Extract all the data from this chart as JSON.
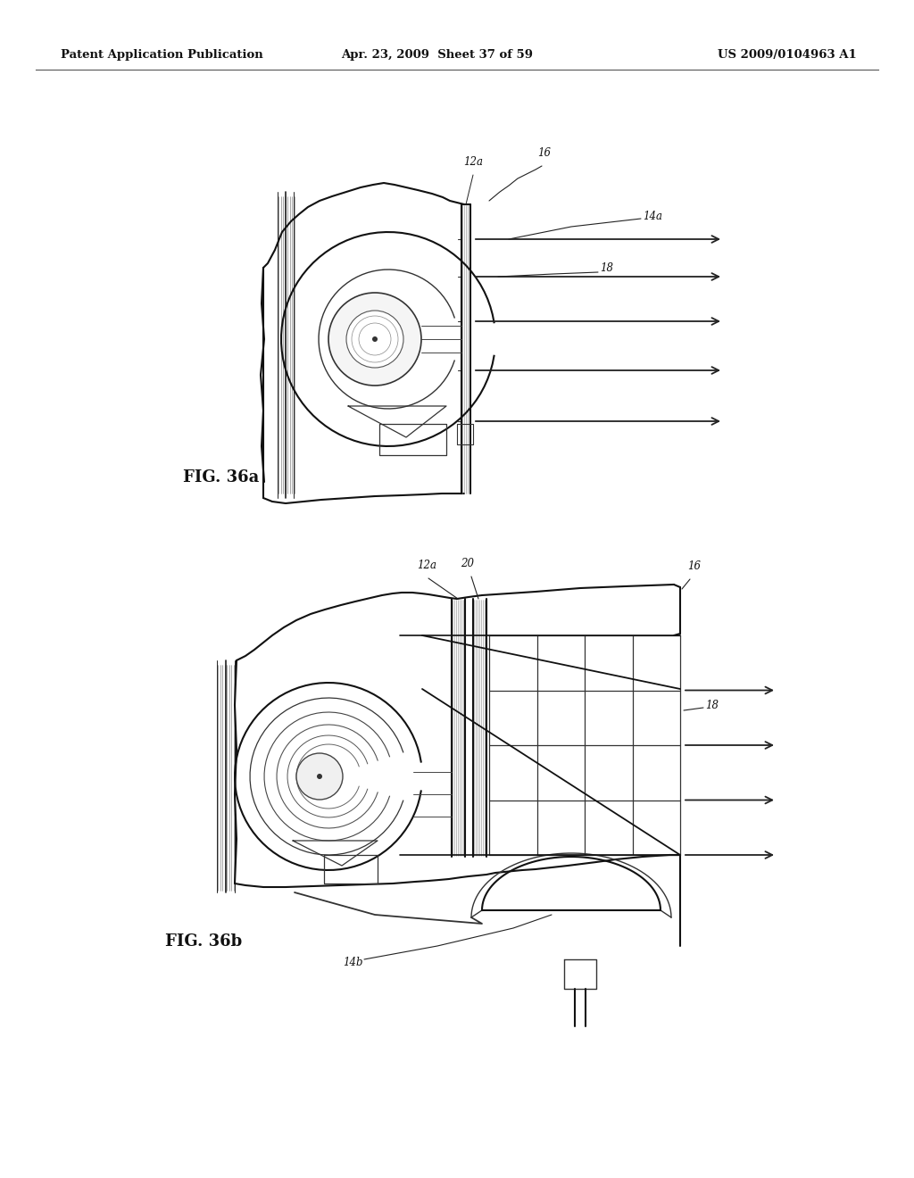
{
  "bg_color": "#ffffff",
  "header_text_left": "Patent Application Publication",
  "header_text_center": "Apr. 23, 2009  Sheet 37 of 59",
  "header_text_right": "US 2009/0104963 A1",
  "fig_label_a": "FIG. 36a",
  "fig_label_b": "FIG. 36b",
  "label_12a_top": "12a",
  "label_16_top": "16",
  "label_14a": "14a",
  "label_18_top": "18",
  "label_12a_bot": "12a",
  "label_20": "20",
  "label_16_bot": "16",
  "label_18_bot": "18",
  "label_14b": "14b"
}
